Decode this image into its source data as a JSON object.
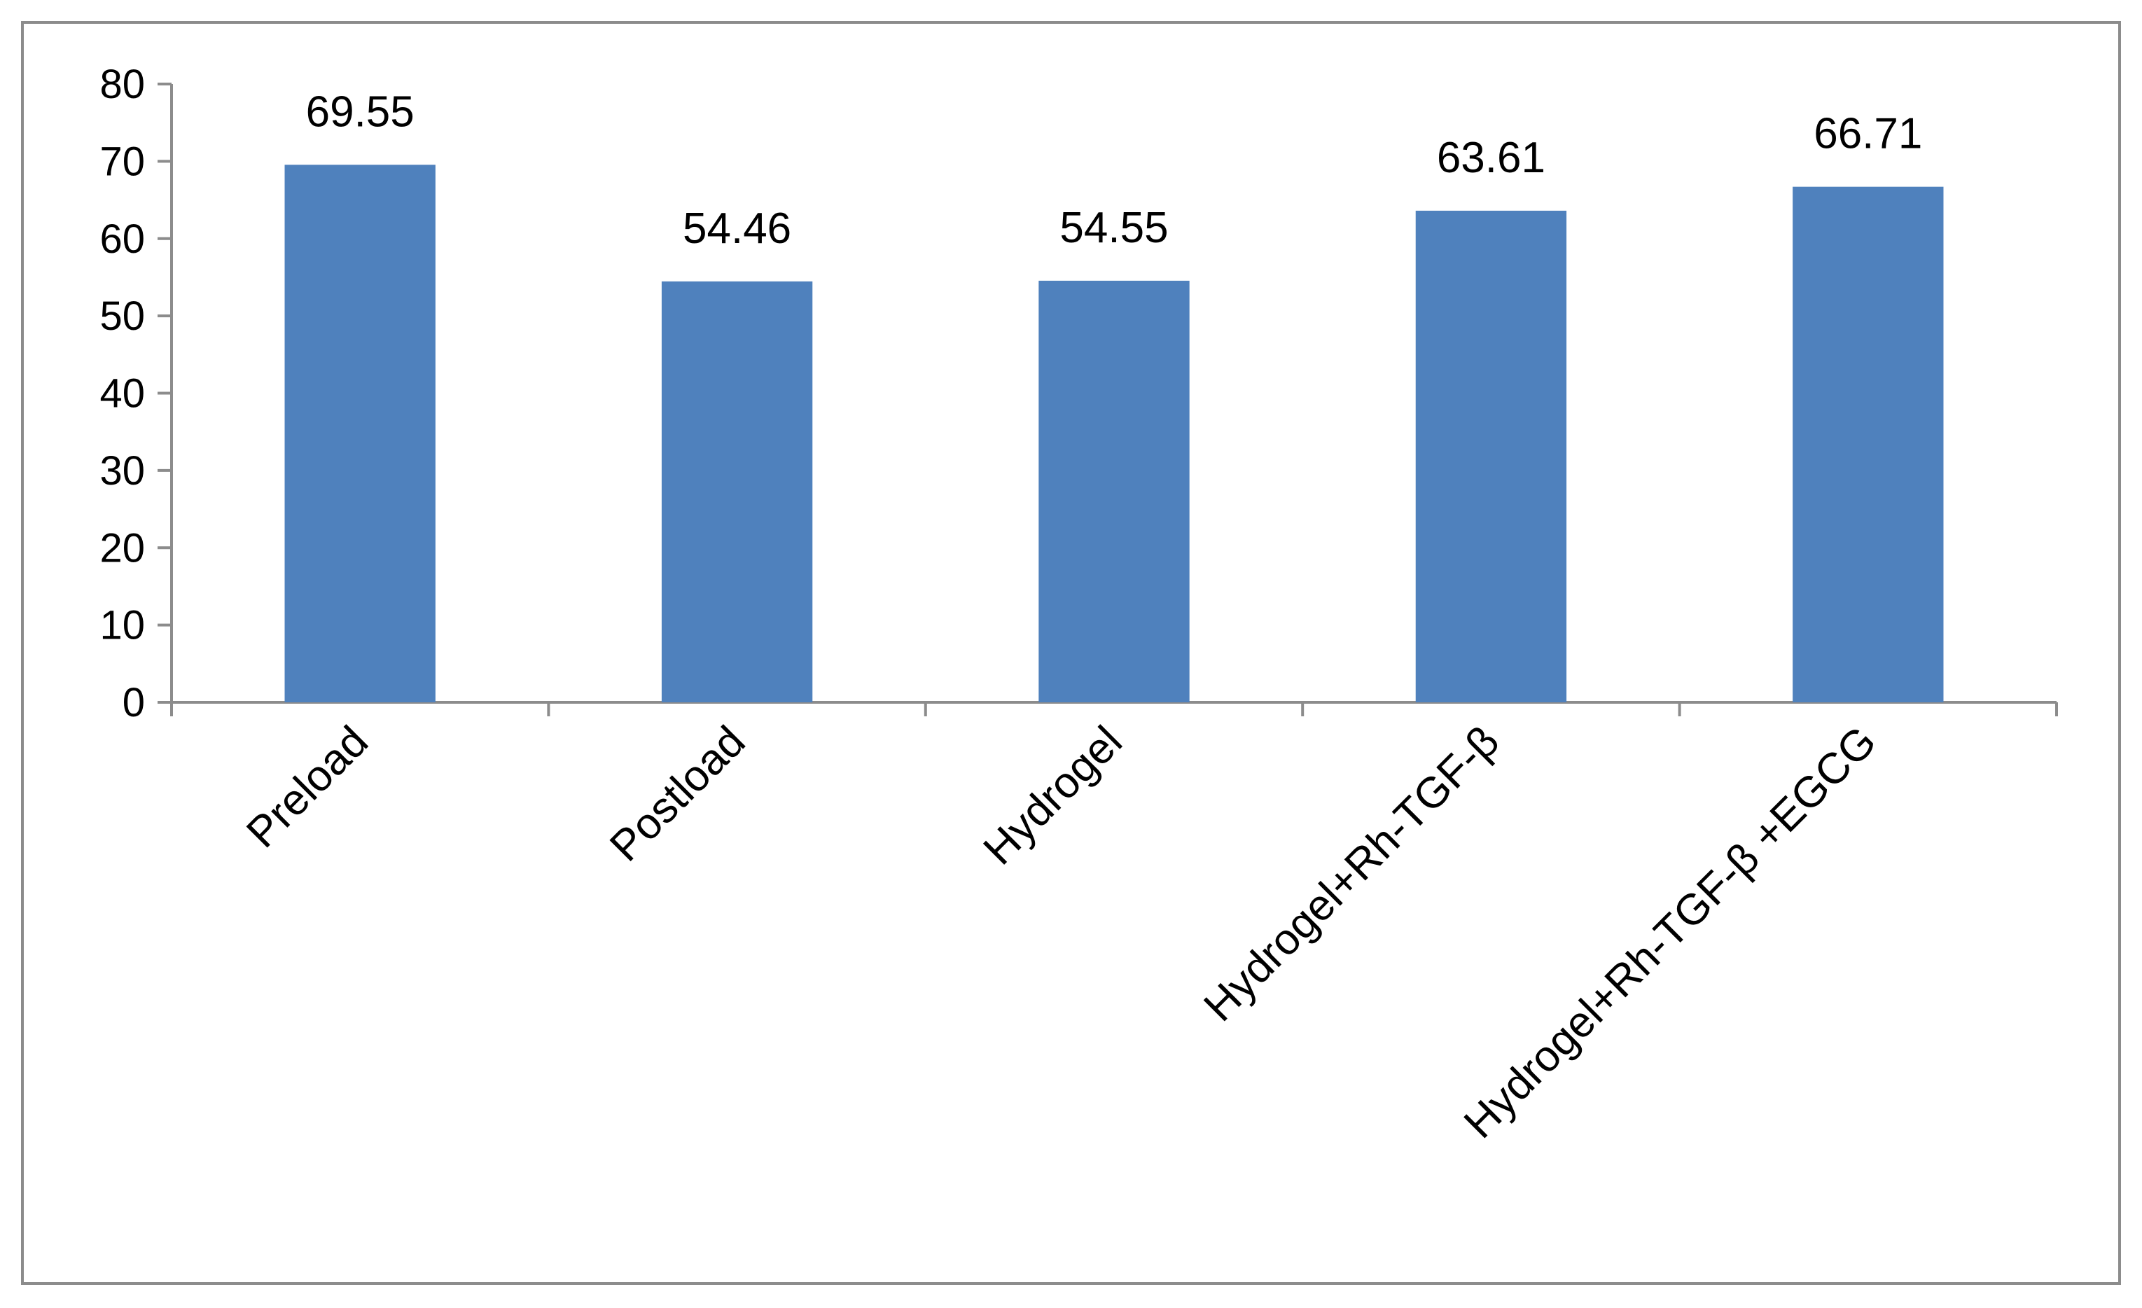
{
  "chart_data": {
    "type": "bar",
    "title": "",
    "xlabel": "",
    "ylabel": "",
    "categories": [
      "Preload",
      "Postload",
      "Hydrogel",
      "Hydrogel+Rh-TGF-β",
      "Hydrogel+Rh-TGF-β +EGCG"
    ],
    "values": [
      69.55,
      54.46,
      54.55,
      63.61,
      66.71
    ],
    "data_labels": [
      "69.55",
      "54.46",
      "54.55",
      "63.61",
      "66.71"
    ],
    "ylim": [
      0,
      80
    ],
    "yticks": [
      0,
      10,
      20,
      30,
      40,
      50,
      60,
      70,
      80
    ],
    "grid": false,
    "legend": "none",
    "bar_color": "#4f81bd",
    "axis_color": "#8c8c8c"
  }
}
